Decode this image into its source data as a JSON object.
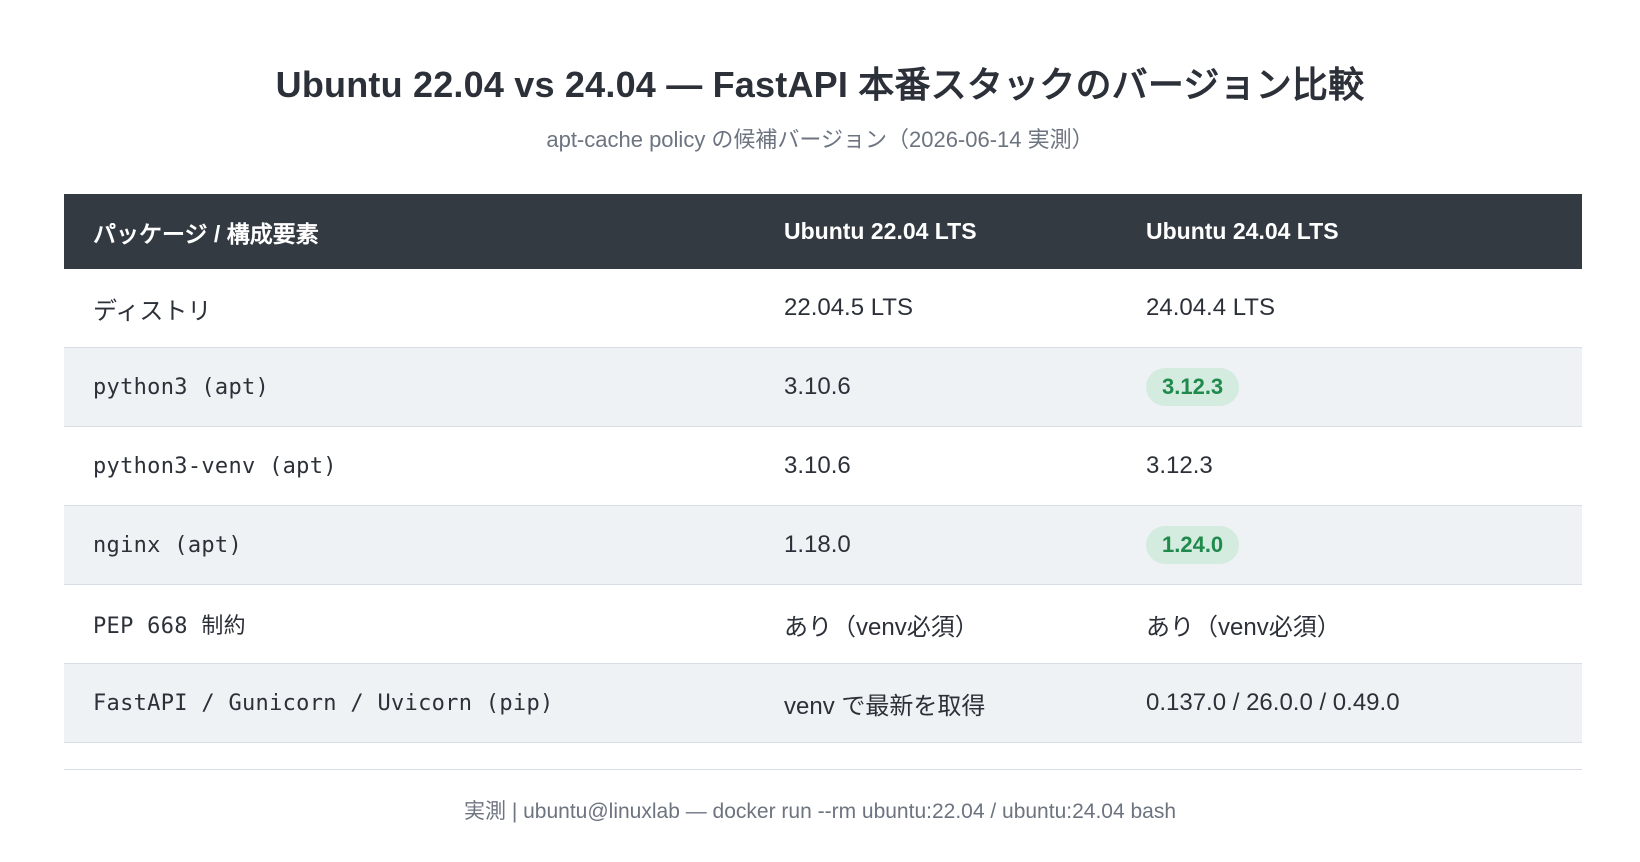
{
  "header": {
    "title": "Ubuntu 22.04 vs 24.04 — FastAPI 本番スタックのバージョン比較",
    "subtitle": "apt-cache policy の候補バージョン（2026-06-14 実測）"
  },
  "table": {
    "columns": [
      "パッケージ / 構成要素",
      "Ubuntu 22.04 LTS",
      "Ubuntu 24.04 LTS"
    ],
    "rows": [
      {
        "name": "ディストリ",
        "v2204": "22.04.5 LTS",
        "v2404": "24.04.4 LTS",
        "highlight": false
      },
      {
        "name": "python3 (apt)",
        "v2204": "3.10.6",
        "v2404": "3.12.3",
        "highlight": true
      },
      {
        "name": "python3-venv (apt)",
        "v2204": "3.10.6",
        "v2404": "3.12.3",
        "highlight": false
      },
      {
        "name": "nginx (apt)",
        "v2204": "1.18.0",
        "v2404": "1.24.0",
        "highlight": true
      },
      {
        "name": "PEP 668 制約",
        "v2204": "あり（venv必須）",
        "v2404": "あり（venv必須）",
        "highlight": false
      },
      {
        "name": "FastAPI / Gunicorn / Uvicorn (pip)",
        "v2204": "venv で最新を取得",
        "v2404": "0.137.0 / 26.0.0 / 0.49.0",
        "highlight": false
      }
    ]
  },
  "footer": {
    "text": "実測 | ubuntu@linuxlab — docker run --rm ubuntu:22.04 / ubuntu:24.04 bash"
  },
  "colors": {
    "header_bg": "#343a42",
    "alt_row_bg": "#eff2f5",
    "badge_bg": "#d4ebdf",
    "badge_text": "#1f8a4c"
  }
}
